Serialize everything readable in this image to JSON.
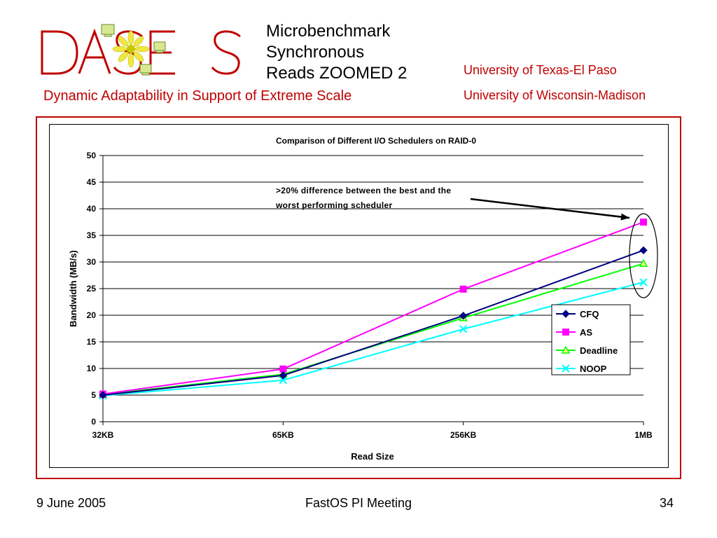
{
  "slide": {
    "title_lines": [
      "Microbenchmark",
      "Synchronous",
      "Reads ZOOMED 2"
    ],
    "subtitle": "Dynamic Adaptability in Support of Extreme Scale",
    "university_1": "University of Texas-El Paso",
    "university_2": "University of Wisconsin-Madison",
    "logo_text": "DASES",
    "accent_color": "#c00000"
  },
  "footer": {
    "date": "9 June 2005",
    "event": "FastOS PI Meeting",
    "page": "34"
  },
  "chart_data": {
    "type": "line",
    "title": "Comparison of Different I/O Schedulers on RAID-0",
    "xlabel": "Read Size",
    "ylabel": "Bandwidth (MB/s)",
    "categories": [
      "32KB",
      "65KB",
      "256KB",
      "1MB"
    ],
    "ylim": [
      0,
      50
    ],
    "yticks": [
      0,
      5,
      10,
      15,
      20,
      25,
      30,
      35,
      40,
      45,
      50
    ],
    "grid": "horizontal",
    "legend_position": "right",
    "series": [
      {
        "name": "CFQ",
        "values": [
          5.0,
          8.7,
          19.9,
          32.2
        ],
        "color": "#000080",
        "marker": "diamond"
      },
      {
        "name": "AS",
        "values": [
          5.2,
          9.9,
          24.9,
          37.5
        ],
        "color": "#ff00ff",
        "marker": "square"
      },
      {
        "name": "Deadline",
        "values": [
          5.1,
          8.9,
          19.5,
          29.7
        ],
        "color": "#00ff00",
        "marker": "triangle"
      },
      {
        "name": "NOOP",
        "values": [
          4.9,
          7.8,
          17.4,
          26.2
        ],
        "color": "#00ffff",
        "marker": "x"
      }
    ],
    "annotation": {
      "lines": [
        ">20% difference between the best and the",
        "worst performing scheduler"
      ]
    }
  }
}
